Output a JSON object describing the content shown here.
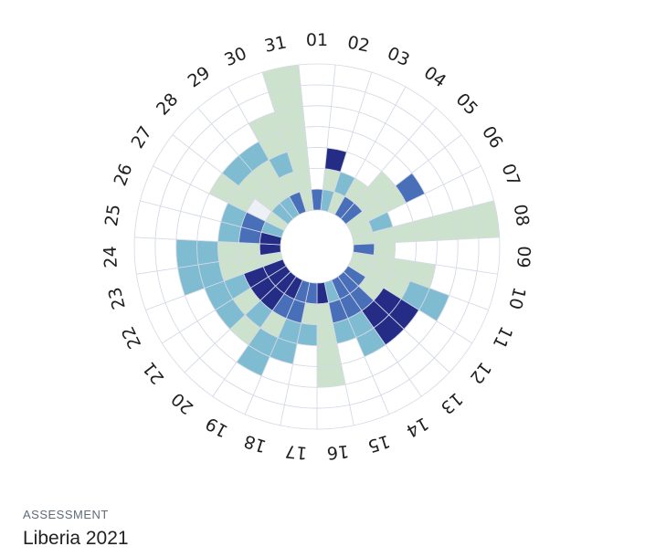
{
  "card": {
    "eyebrow": "ASSESSMENT",
    "title": "Liberia 2021"
  },
  "chart_data": {
    "type": "heatmap",
    "layout": "radial",
    "categories": [
      "01",
      "02",
      "03",
      "04",
      "05",
      "06",
      "07",
      "08",
      "09",
      "10",
      "11",
      "12",
      "13",
      "14",
      "15",
      "16",
      "17",
      "18",
      "19",
      "20",
      "21",
      "22",
      "23",
      "24",
      "25",
      "26",
      "27",
      "28",
      "29",
      "30",
      "31"
    ],
    "rings": 7,
    "ring_order": "inner-to-outer",
    "level_colors": {
      "0": "#ffffff",
      "1": "#edf1f6",
      "2": "#cde2cc",
      "3": "#7fbcd2",
      "4": "#4a6fb9",
      "5": "#242c85"
    },
    "values": [
      [
        4,
        0,
        0,
        0,
        0,
        0,
        0
      ],
      [
        3,
        2,
        5,
        0,
        0,
        0,
        0
      ],
      [
        2,
        3,
        0,
        0,
        0,
        0,
        0
      ],
      [
        4,
        2,
        0,
        0,
        0,
        0,
        0
      ],
      [
        4,
        2,
        2,
        0,
        0,
        0,
        0
      ],
      [
        2,
        2,
        2,
        4,
        0,
        0,
        0
      ],
      [
        2,
        3,
        0,
        0,
        0,
        0,
        0
      ],
      [
        2,
        2,
        2,
        2,
        2,
        2,
        2
      ],
      [
        4,
        2,
        0,
        0,
        0,
        0,
        0
      ],
      [
        2,
        2,
        2,
        2,
        0,
        0,
        0
      ],
      [
        2,
        2,
        2,
        3,
        3,
        0,
        0
      ],
      [
        4,
        2,
        5,
        5,
        0,
        0,
        0
      ],
      [
        4,
        4,
        5,
        5,
        0,
        0,
        0
      ],
      [
        4,
        4,
        3,
        3,
        0,
        0,
        0
      ],
      [
        3,
        4,
        3,
        0,
        0,
        0,
        0
      ],
      [
        5,
        2,
        2,
        2,
        2,
        0,
        0
      ],
      [
        4,
        2,
        3,
        0,
        0,
        0,
        0
      ],
      [
        4,
        4,
        3,
        3,
        0,
        0,
        0
      ],
      [
        5,
        4,
        2,
        3,
        3,
        0,
        0
      ],
      [
        5,
        5,
        3,
        2,
        0,
        0,
        0
      ],
      [
        5,
        5,
        2,
        3,
        0,
        0,
        0
      ],
      [
        5,
        5,
        3,
        3,
        0,
        0,
        0
      ],
      [
        2,
        2,
        2,
        3,
        3,
        0,
        0
      ],
      [
        5,
        2,
        2,
        3,
        3,
        0,
        0
      ],
      [
        5,
        4,
        3,
        0,
        0,
        0,
        0
      ],
      [
        3,
        4,
        3,
        0,
        0,
        0,
        0
      ],
      [
        2,
        1,
        2,
        2,
        0,
        0,
        0
      ],
      [
        3,
        2,
        2,
        3,
        0,
        0,
        0
      ],
      [
        3,
        2,
        2,
        3,
        0,
        0,
        0
      ],
      [
        4,
        2,
        3,
        2,
        2,
        0,
        0
      ],
      [
        2,
        2,
        2,
        2,
        2,
        2,
        2
      ]
    ]
  }
}
